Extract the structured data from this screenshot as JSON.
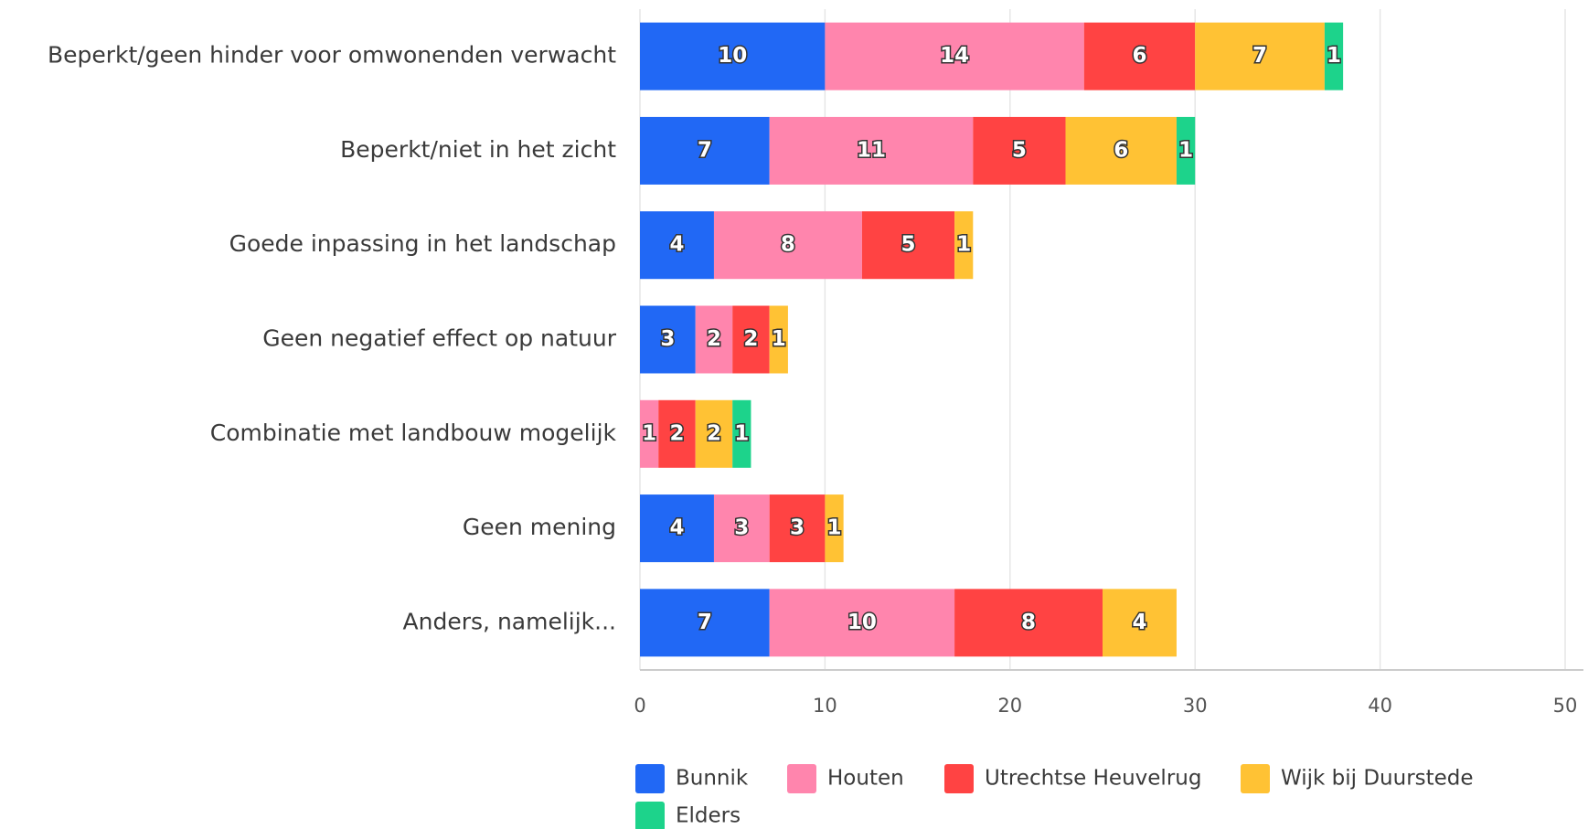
{
  "chart_data": {
    "type": "stacked_bar_horizontal",
    "categories": [
      "Beperkt/geen hinder voor omwonenden verwacht",
      "Beperkt/niet in het zicht",
      "Goede inpassing in het landschap",
      "Geen negatief effect op natuur",
      "Combinatie met landbouw mogelijk",
      "Geen mening",
      "Anders, namelijk..."
    ],
    "series": [
      {
        "name": "Bunnik",
        "color": "#2168f5",
        "values": [
          10,
          7,
          4,
          3,
          null,
          4,
          7
        ]
      },
      {
        "name": "Houten",
        "color": "#ff85ad",
        "values": [
          14,
          11,
          8,
          2,
          1,
          3,
          10
        ]
      },
      {
        "name": "Utrechtse Heuvelrug",
        "color": "#ff4343",
        "values": [
          6,
          5,
          5,
          2,
          2,
          3,
          8
        ]
      },
      {
        "name": "Wijk bij Duurstede",
        "color": "#ffc234",
        "values": [
          7,
          6,
          1,
          1,
          2,
          1,
          4
        ]
      },
      {
        "name": "Elders",
        "color": "#1dd38b",
        "values": [
          1,
          1,
          null,
          null,
          1,
          null,
          null
        ]
      }
    ],
    "xlim": [
      0,
      50
    ],
    "xticks": [
      0,
      10,
      20,
      30,
      40,
      50
    ],
    "grid": true
  }
}
